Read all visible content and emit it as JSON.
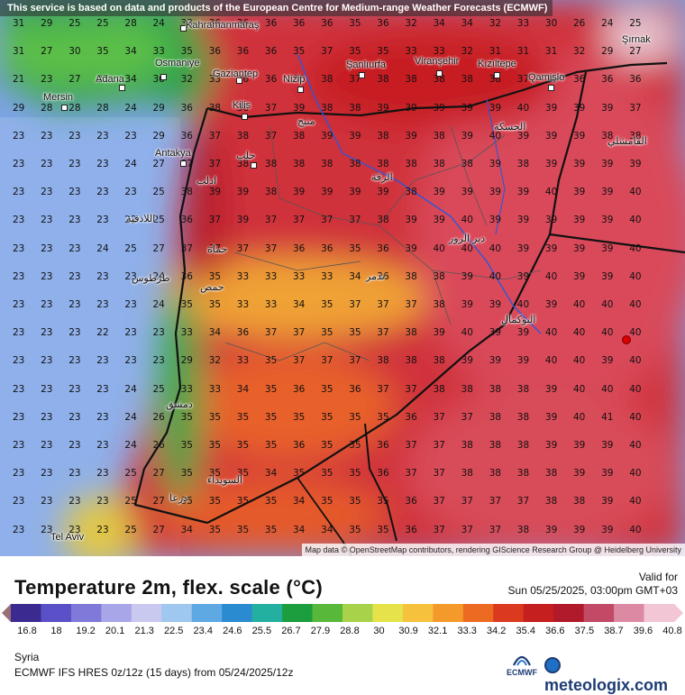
{
  "header": {
    "disclaimer": "This service is based on data and products of the European Centre for Medium-range Weather Forecasts (ECMWF)"
  },
  "map": {
    "attribution": "Map data © OpenStreetMap contributors, rendering GIScience Research Group @ Heidelberg University",
    "cities": [
      "Kahramanmaraş",
      "Osmaniye",
      "Gaziantep",
      "Adana",
      "Mersin",
      "Kilis",
      "Nizip",
      "Şanlıurfa",
      "Viranşehir",
      "Kızıltepe",
      "Qamişlo",
      "Şırnak",
      "Antakya",
      "Tel Aviv",
      "حلب",
      "ادلب",
      "منبج",
      "الرقة",
      "الحسكة",
      "دير الزور",
      "حماة",
      "حمص",
      "طرطوس",
      "اللاذقية",
      "دمشق",
      "السويداء",
      "درعا",
      "تدمر",
      "البوكمال",
      "القامشلي"
    ],
    "temperature_grid": [
      [
        31,
        29,
        25,
        25,
        28,
        24,
        33,
        36,
        36,
        36,
        36,
        36,
        35,
        36,
        32,
        34,
        34,
        32,
        33,
        30,
        26,
        24,
        25
      ],
      [
        31,
        27,
        30,
        35,
        34,
        33,
        35,
        36,
        36,
        36,
        35,
        37,
        35,
        35,
        33,
        33,
        32,
        31,
        31,
        31,
        32,
        29,
        27
      ],
      [
        21,
        23,
        27,
        31,
        34,
        36,
        32,
        33,
        36,
        36,
        36,
        38,
        37,
        38,
        38,
        38,
        38,
        38,
        37,
        36,
        36,
        36,
        36
      ],
      [
        29,
        28,
        28,
        28,
        24,
        29,
        36,
        38,
        38,
        37,
        39,
        38,
        38,
        39,
        39,
        39,
        39,
        39,
        40,
        39,
        39,
        39,
        37
      ],
      [
        23,
        23,
        23,
        23,
        23,
        29,
        36,
        37,
        38,
        37,
        38,
        39,
        39,
        38,
        39,
        38,
        39,
        40,
        39,
        39,
        39,
        38,
        38
      ],
      [
        23,
        23,
        23,
        23,
        24,
        27,
        37,
        37,
        38,
        38,
        38,
        38,
        38,
        38,
        38,
        38,
        38,
        39,
        38,
        39,
        39,
        39,
        39
      ],
      [
        23,
        23,
        23,
        23,
        23,
        25,
        38,
        39,
        39,
        38,
        39,
        39,
        39,
        39,
        38,
        39,
        39,
        39,
        39,
        40,
        39,
        39,
        40
      ],
      [
        23,
        23,
        23,
        23,
        22,
        25,
        36,
        37,
        39,
        37,
        37,
        37,
        37,
        38,
        39,
        39,
        40,
        39,
        39,
        39,
        39,
        39,
        40
      ],
      [
        23,
        23,
        23,
        24,
        25,
        27,
        37,
        37,
        37,
        37,
        36,
        36,
        35,
        36,
        39,
        40,
        40,
        40,
        39,
        39,
        39,
        39,
        40
      ],
      [
        23,
        23,
        23,
        23,
        23,
        24,
        36,
        35,
        33,
        33,
        33,
        33,
        34,
        36,
        38,
        38,
        39,
        40,
        39,
        40,
        39,
        39,
        40
      ],
      [
        23,
        23,
        23,
        23,
        23,
        24,
        35,
        35,
        33,
        33,
        34,
        35,
        37,
        37,
        37,
        38,
        39,
        39,
        40,
        39,
        40,
        40,
        40
      ],
      [
        23,
        23,
        23,
        22,
        23,
        23,
        33,
        34,
        36,
        37,
        37,
        35,
        35,
        37,
        38,
        39,
        40,
        39,
        39,
        40,
        40,
        40,
        40
      ],
      [
        23,
        23,
        23,
        23,
        23,
        23,
        29,
        32,
        33,
        35,
        37,
        37,
        37,
        38,
        38,
        38,
        39,
        39,
        39,
        40,
        40,
        39,
        40
      ],
      [
        23,
        23,
        23,
        23,
        24,
        25,
        33,
        33,
        34,
        35,
        36,
        35,
        36,
        37,
        37,
        38,
        38,
        38,
        38,
        39,
        40,
        40,
        40
      ],
      [
        23,
        23,
        23,
        23,
        24,
        26,
        35,
        35,
        35,
        35,
        35,
        35,
        35,
        35,
        36,
        37,
        37,
        38,
        38,
        39,
        40,
        41,
        40
      ],
      [
        23,
        23,
        23,
        23,
        24,
        26,
        35,
        35,
        35,
        35,
        36,
        35,
        35,
        36,
        37,
        37,
        38,
        38,
        38,
        39,
        39,
        39,
        40
      ],
      [
        23,
        23,
        23,
        23,
        25,
        27,
        35,
        35,
        35,
        34,
        35,
        35,
        35,
        36,
        37,
        37,
        38,
        38,
        38,
        38,
        39,
        39,
        40
      ],
      [
        23,
        23,
        23,
        23,
        25,
        27,
        35,
        35,
        35,
        35,
        34,
        35,
        35,
        35,
        36,
        37,
        37,
        37,
        37,
        38,
        38,
        39,
        40
      ],
      [
        23,
        23,
        23,
        23,
        25,
        27,
        34,
        35,
        35,
        35,
        34,
        34,
        35,
        35,
        36,
        37,
        37,
        37,
        38,
        39,
        39,
        39,
        40
      ]
    ]
  },
  "legend": {
    "title": "Temperature 2m, flex. scale (°C)",
    "valid_label": "Valid for",
    "valid_time": "Sun 05/25/2025, 03:00pm GMT+03",
    "ticks": [
      "16.8",
      "18",
      "19.2",
      "20.1",
      "21.3",
      "22.5",
      "23.4",
      "24.6",
      "25.5",
      "26.7",
      "27.9",
      "28.8",
      "30",
      "30.9",
      "32.1",
      "33.3",
      "34.2",
      "35.4",
      "36.6",
      "37.5",
      "38.7",
      "39.6",
      "40.8"
    ],
    "colors": [
      "#9a6f73",
      "#3b2a8f",
      "#5a50c7",
      "#7f79d9",
      "#a8a6e8",
      "#c9c9f0",
      "#9fc7ef",
      "#5ea9e4",
      "#2b8bd0",
      "#24b0a0",
      "#1c9e3e",
      "#58b83a",
      "#a8d24a",
      "#e6e34a",
      "#f6c23e",
      "#f39a2b",
      "#ec6a22",
      "#dc3a1e",
      "#c51f1f",
      "#b01a2a",
      "#c24a66",
      "#dc8aa3",
      "#f2c6d4"
    ]
  },
  "footer": {
    "region": "Syria",
    "model": "ECMWF IFS HRES 0z/12z (15 days) from  05/24/2025/12z",
    "ecmwf_label": "ECMWF",
    "brand": "meteologix.com"
  }
}
